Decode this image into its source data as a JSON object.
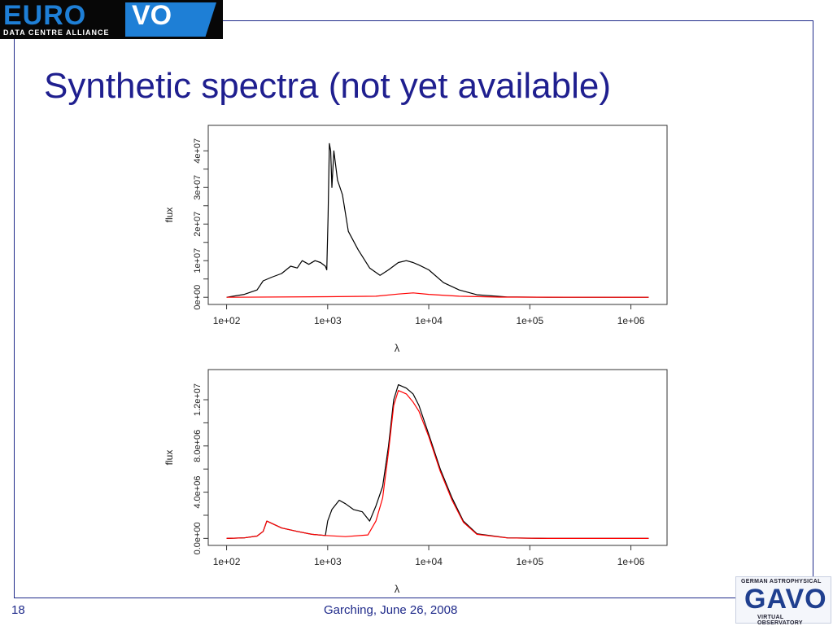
{
  "logos": {
    "euro_vo": {
      "euro": "EURO",
      "vo": "VO",
      "subtitle": "DATA CENTRE ALLIANCE"
    },
    "gavo": {
      "top": "GERMAN ASTROPHYSICAL",
      "main": "GAVO",
      "bottom": "VIRTUAL OBSERVATORY"
    }
  },
  "slide": {
    "title": "Synthetic spectra (not yet available)",
    "page_number": "18",
    "footer": "Garching, June 26, 2008"
  },
  "colors": {
    "frame": "#1f2a8a",
    "title": "#1f1f8f",
    "series_black": "#000000",
    "series_red": "#ff0000"
  },
  "chart_data": [
    {
      "type": "line",
      "xscale": "log",
      "xlabel": "λ",
      "ylabel": "flux",
      "xlim": [
        100,
        1500000
      ],
      "ylim": [
        0,
        45000000
      ],
      "xticks": [
        "1e+02",
        "1e+03",
        "1e+04",
        "1e+05",
        "1e+06"
      ],
      "yticks": [
        {
          "value": 0,
          "label": "0e+00"
        },
        {
          "value": 10000000,
          "label": "1e+07"
        },
        {
          "value": 20000000,
          "label": "2e+07"
        },
        {
          "value": 30000000,
          "label": "3e+07"
        },
        {
          "value": 40000000,
          "label": "4e+07"
        }
      ],
      "series": [
        {
          "color": "#000000",
          "points": [
            [
              100,
              0
            ],
            [
              150,
              800000
            ],
            [
              200,
              2000000
            ],
            [
              230,
              4500000
            ],
            [
              280,
              5500000
            ],
            [
              350,
              6500000
            ],
            [
              430,
              8500000
            ],
            [
              500,
              8000000
            ],
            [
              560,
              10000000
            ],
            [
              650,
              9000000
            ],
            [
              750,
              10000000
            ],
            [
              850,
              9500000
            ],
            [
              950,
              8500000
            ],
            [
              980,
              7500000
            ],
            [
              1010,
              22000000
            ],
            [
              1040,
              42000000
            ],
            [
              1070,
              40000000
            ],
            [
              1100,
              30000000
            ],
            [
              1150,
              40000000
            ],
            [
              1250,
              32000000
            ],
            [
              1400,
              28000000
            ],
            [
              1600,
              18000000
            ],
            [
              2000,
              13000000
            ],
            [
              2600,
              8000000
            ],
            [
              3300,
              6000000
            ],
            [
              4000,
              7500000
            ],
            [
              5000,
              9500000
            ],
            [
              6000,
              10000000
            ],
            [
              7000,
              9500000
            ],
            [
              8000,
              8800000
            ],
            [
              10000,
              7500000
            ],
            [
              14000,
              4000000
            ],
            [
              20000,
              2000000
            ],
            [
              30000,
              700000
            ],
            [
              60000,
              100000
            ],
            [
              150000,
              0
            ],
            [
              1500000,
              0
            ]
          ]
        },
        {
          "color": "#ff0000",
          "points": [
            [
              100,
              0
            ],
            [
              1000,
              150000
            ],
            [
              3000,
              300000
            ],
            [
              5000,
              900000
            ],
            [
              7000,
              1200000
            ],
            [
              10000,
              800000
            ],
            [
              20000,
              300000
            ],
            [
              50000,
              50000
            ],
            [
              1500000,
              0
            ]
          ]
        }
      ]
    },
    {
      "type": "line",
      "xscale": "log",
      "xlabel": "λ",
      "ylabel": "flux",
      "xlim": [
        100,
        1500000
      ],
      "ylim": [
        0,
        14000000
      ],
      "xticks": [
        "1e+02",
        "1e+03",
        "1e+04",
        "1e+05",
        "1e+06"
      ],
      "yticks": [
        {
          "value": 0,
          "label": "0.0e+00"
        },
        {
          "value": 4000000,
          "label": "4.0e+06"
        },
        {
          "value": 8000000,
          "label": "8.0e+06"
        },
        {
          "value": 12000000,
          "label": "1.2e+07"
        }
      ],
      "series": [
        {
          "color": "#000000",
          "points": [
            [
              100,
              0
            ],
            [
              150,
              50000
            ],
            [
              200,
              200000
            ],
            [
              230,
              600000
            ],
            [
              250,
              1500000
            ],
            [
              280,
              1300000
            ],
            [
              350,
              900000
            ],
            [
              500,
              600000
            ],
            [
              700,
              350000
            ],
            [
              950,
              250000
            ],
            [
              1000,
              1500000
            ],
            [
              1100,
              2500000
            ],
            [
              1300,
              3300000
            ],
            [
              1500,
              3000000
            ],
            [
              1800,
              2500000
            ],
            [
              2200,
              2300000
            ],
            [
              2600,
              1500000
            ],
            [
              3000,
              2800000
            ],
            [
              3500,
              4500000
            ],
            [
              4000,
              8000000
            ],
            [
              4500,
              12000000
            ],
            [
              5000,
              13300000
            ],
            [
              6000,
              13000000
            ],
            [
              7000,
              12500000
            ],
            [
              8000,
              11500000
            ],
            [
              10000,
              9000000
            ],
            [
              13000,
              6000000
            ],
            [
              17000,
              3500000
            ],
            [
              22000,
              1500000
            ],
            [
              30000,
              400000
            ],
            [
              60000,
              50000
            ],
            [
              150000,
              0
            ],
            [
              1500000,
              0
            ]
          ]
        },
        {
          "color": "#ff0000",
          "points": [
            [
              100,
              0
            ],
            [
              150,
              50000
            ],
            [
              200,
              200000
            ],
            [
              230,
              600000
            ],
            [
              250,
              1500000
            ],
            [
              280,
              1300000
            ],
            [
              350,
              900000
            ],
            [
              500,
              600000
            ],
            [
              700,
              350000
            ],
            [
              950,
              250000
            ],
            [
              1500,
              150000
            ],
            [
              2500,
              300000
            ],
            [
              3000,
              1500000
            ],
            [
              3500,
              3500000
            ],
            [
              4000,
              7500000
            ],
            [
              4500,
              11500000
            ],
            [
              5000,
              12800000
            ],
            [
              6000,
              12500000
            ],
            [
              7000,
              11800000
            ],
            [
              8000,
              11000000
            ],
            [
              10000,
              8800000
            ],
            [
              13000,
              5800000
            ],
            [
              17000,
              3300000
            ],
            [
              22000,
              1400000
            ],
            [
              30000,
              350000
            ],
            [
              60000,
              40000
            ],
            [
              150000,
              0
            ],
            [
              1500000,
              0
            ]
          ]
        }
      ]
    }
  ]
}
